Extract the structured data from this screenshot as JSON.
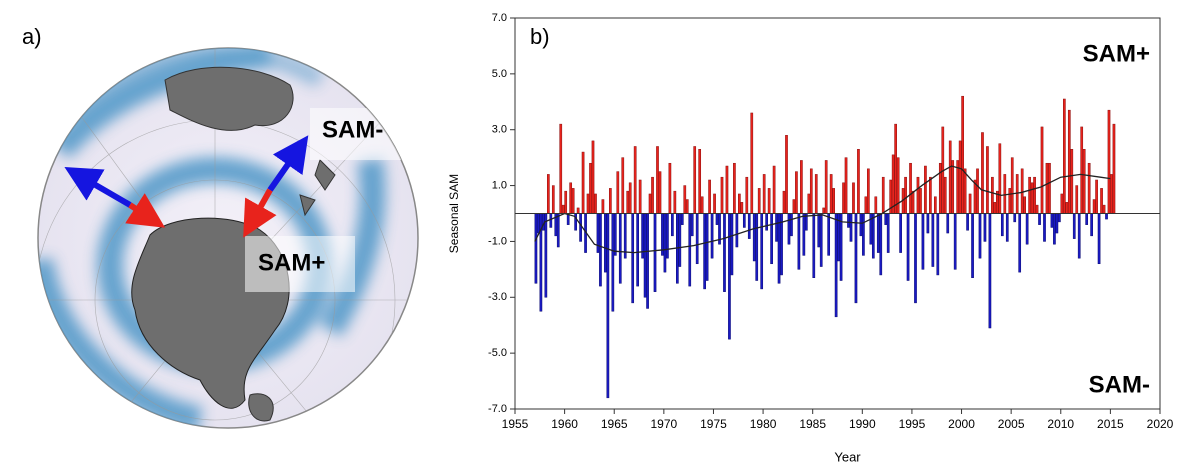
{
  "panel_a": {
    "label": "a)",
    "annotations": [
      "SAM-",
      "SAM+"
    ]
  },
  "chart_data": {
    "type": "bar",
    "panel_label": "b)",
    "annotations": [
      "SAM+",
      "SAM-"
    ],
    "ylabel": "Seasonal SAM",
    "xlabel": "Year",
    "xlim": [
      1955,
      2020
    ],
    "xticks": [
      1955,
      1960,
      1965,
      1970,
      1975,
      1980,
      1985,
      1990,
      1995,
      2000,
      2005,
      2010,
      2015,
      2020
    ],
    "ylim": [
      -7,
      7
    ],
    "yticks": [
      {
        "value": 7,
        "label": "7.0"
      },
      {
        "value": 5,
        "label": "5.0"
      },
      {
        "value": 3,
        "label": "3.0"
      },
      {
        "value": 1,
        "label": "1.0"
      },
      {
        "value": -1,
        "label": "-1.0"
      },
      {
        "value": -3,
        "label": "-3.0"
      },
      {
        "value": -5,
        "label": "-5.0"
      },
      {
        "value": -7,
        "label": "-7.0"
      }
    ],
    "positive_color": "#e8231c",
    "negative_color": "#1a1ac4",
    "zero_line": true,
    "series": [
      {
        "x": [
          1957,
          1957.25,
          1957.5,
          1957.75,
          1958,
          1958.25,
          1958.5,
          1958.75,
          1959,
          1959.25,
          1959.5,
          1959.75,
          1960,
          1960.25,
          1960.5,
          1960.75,
          1961,
          1961.25,
          1961.5,
          1961.75,
          1962,
          1962.25,
          1962.5,
          1962.75,
          1963,
          1963.25,
          1963.5,
          1963.75,
          1964,
          1964.25,
          1964.5,
          1964.75,
          1965,
          1965.25,
          1965.5,
          1965.75,
          1966,
          1966.25,
          1966.5,
          1966.75,
          1967,
          1967.25,
          1967.5,
          1967.75,
          1968,
          1968.25,
          1968.5,
          1968.75,
          1969,
          1969.25,
          1969.5,
          1969.75,
          1970,
          1970.25,
          1970.5,
          1970.75,
          1971,
          1971.25,
          1971.5,
          1971.75,
          1972,
          1972.25,
          1972.5,
          1972.75,
          1973,
          1973.25,
          1973.5,
          1973.75,
          1974,
          1974.25,
          1974.5,
          1974.75,
          1975,
          1975.25,
          1975.5,
          1975.75,
          1976,
          1976.25,
          1976.5,
          1976.75,
          1977,
          1977.25,
          1977.5,
          1977.75,
          1978,
          1978.25,
          1978.5,
          1978.75,
          1979,
          1979.25,
          1979.5,
          1979.75,
          1980,
          1980.25,
          1980.5,
          1980.75,
          1981,
          1981.25,
          1981.5,
          1981.75,
          1982,
          1982.25,
          1982.5,
          1982.75,
          1983,
          1983.25,
          1983.5,
          1983.75,
          1984,
          1984.25,
          1984.5,
          1984.75,
          1985,
          1985.25,
          1985.5,
          1985.75,
          1986,
          1986.25,
          1986.5,
          1986.75,
          1987,
          1987.25,
          1987.5,
          1987.75,
          1988,
          1988.25,
          1988.5,
          1988.75,
          1989,
          1989.25,
          1989.5,
          1989.75,
          1990,
          1990.25,
          1990.5,
          1990.75,
          1991,
          1991.25,
          1991.5,
          1991.75,
          1992,
          1992.25,
          1992.5,
          1992.75,
          1993,
          1993.25,
          1993.5,
          1993.75,
          1994,
          1994.25,
          1994.5,
          1994.75,
          1995,
          1995.25,
          1995.5,
          1995.75,
          1996,
          1996.25,
          1996.5,
          1996.75,
          1997,
          1997.25,
          1997.5,
          1997.75,
          1998,
          1998.25,
          1998.5,
          1998.75,
          1999,
          1999.25,
          1999.5,
          1999.75,
          2000,
          2000.25,
          2000.5,
          2000.75,
          2001,
          2001.25,
          2001.5,
          2001.75,
          2002,
          2002.25,
          2002.5,
          2002.75,
          2003,
          2003.25,
          2003.5,
          2003.75,
          2004,
          2004.25,
          2004.5,
          2004.75,
          2005,
          2005.25,
          2005.5,
          2005.75,
          2006,
          2006.25,
          2006.5,
          2006.75,
          2007,
          2007.25,
          2007.5,
          2007.75,
          2008,
          2008.25,
          2008.5,
          2008.75,
          2009,
          2009.25,
          2009.5,
          2009.75,
          2010,
          2010.25,
          2010.5,
          2010.75,
          2011,
          2011.25,
          2011.5,
          2011.75,
          2012,
          2012.25,
          2012.5,
          2012.75,
          2013,
          2013.25,
          2013.5,
          2013.75,
          2014,
          2014.25,
          2014.5,
          2014.75,
          2015,
          2015.25
        ],
        "values": [
          -2.5,
          -0.7,
          -3.5,
          -0.6,
          -3.0,
          1.4,
          -0.5,
          1.0,
          -0.8,
          -1.2,
          3.2,
          0.3,
          0.8,
          -0.4,
          1.1,
          0.9,
          -0.6,
          0.2,
          -1.0,
          2.2,
          -1.4,
          0.7,
          1.8,
          2.6,
          0.7,
          -1.4,
          -2.6,
          0.5,
          -2.1,
          -6.6,
          0.9,
          -3.5,
          -1.5,
          1.5,
          -2.5,
          2.0,
          -1.6,
          0.8,
          1.1,
          -3.2,
          2.4,
          -2.6,
          1.2,
          -1.6,
          -3.0,
          -3.4,
          0.7,
          1.3,
          -2.8,
          2.4,
          1.5,
          -1.5,
          -2.1,
          -1.6,
          1.8,
          -0.8,
          0.8,
          -2.5,
          -1.9,
          -0.4,
          1.0,
          0.5,
          -2.6,
          -0.8,
          2.4,
          -1.8,
          2.3,
          0.6,
          -2.7,
          -2.4,
          1.2,
          -1.6,
          0.7,
          -0.4,
          -1.1,
          1.3,
          -2.8,
          1.7,
          -4.5,
          -2.2,
          1.8,
          -1.2,
          0.7,
          0.4,
          -0.5,
          1.3,
          -0.9,
          3.6,
          -1.7,
          -2.4,
          0.9,
          -2.7,
          1.4,
          -0.6,
          0.9,
          -1.8,
          1.7,
          -1.0,
          -2.5,
          -2.2,
          0.8,
          2.8,
          -1.1,
          -0.8,
          0.5,
          1.5,
          -2.0,
          1.9,
          -1.5,
          -0.6,
          0.7,
          1.6,
          -2.3,
          1.4,
          -1.2,
          -1.9,
          0.2,
          1.9,
          -1.5,
          1.4,
          0.9,
          -3.7,
          -1.7,
          -2.4,
          1.1,
          2.0,
          -0.5,
          -1.0,
          1.1,
          -3.2,
          2.3,
          -0.8,
          -1.5,
          0.6,
          1.6,
          -1.1,
          -1.6,
          0.6,
          -1.4,
          -2.2,
          1.3,
          -0.4,
          -1.4,
          1.2,
          2.1,
          3.2,
          2.0,
          -1.4,
          0.9,
          1.3,
          -2.4,
          1.8,
          0.8,
          -3.2,
          1.3,
          0.9,
          -2.0,
          1.7,
          -0.7,
          1.3,
          -1.9,
          0.6,
          -2.2,
          1.8,
          3.1,
          1.3,
          -0.7,
          2.6,
          1.9,
          -2.0,
          1.9,
          2.6,
          4.2,
          1.6,
          -0.6,
          0.7,
          -2.3,
          1.2,
          1.6,
          -1.6,
          2.9,
          -1.0,
          2.4,
          -4.1,
          1.3,
          0.4,
          0.8,
          2.5,
          -0.8,
          1.4,
          -1.0,
          0.9,
          2.0,
          -0.3,
          1.4,
          -2.1,
          1.6,
          0.6,
          -1.1,
          1.3,
          1.1,
          1.3,
          0.3,
          -0.4,
          3.1,
          -1.0,
          1.8,
          1.8,
          -0.5,
          -1.1,
          -0.7,
          -0.3,
          0.7,
          4.1,
          0.4,
          3.7,
          2.3,
          -0.9,
          1.0,
          -1.6,
          3.1,
          2.3,
          -0.4,
          1.8,
          -0.8,
          0.5,
          1.2,
          -1.8,
          0.9,
          0.3,
          -0.2,
          3.7,
          1.4,
          3.2
        ]
      },
      {
        "type": "line",
        "color": "#222222",
        "x": [
          1957,
          1958,
          1960,
          1961,
          1962,
          1963,
          1965,
          1967,
          1970,
          1973,
          1976,
          1979,
          1982,
          1984,
          1986,
          1988,
          1990,
          1992,
          1994,
          1996,
          1998,
          1999,
          2000,
          2001,
          2002,
          2004,
          2006,
          2008,
          2010,
          2012,
          2014,
          2015
        ],
        "values": [
          -1.0,
          -0.3,
          0.0,
          -0.1,
          -0.6,
          -1.1,
          -1.35,
          -1.4,
          -1.3,
          -1.15,
          -0.9,
          -0.55,
          -0.3,
          -0.1,
          -0.05,
          -0.3,
          -0.35,
          0.0,
          0.45,
          1.0,
          1.5,
          1.7,
          1.6,
          1.2,
          0.85,
          0.65,
          0.75,
          0.95,
          1.3,
          1.4,
          1.3,
          1.25
        ]
      }
    ]
  }
}
